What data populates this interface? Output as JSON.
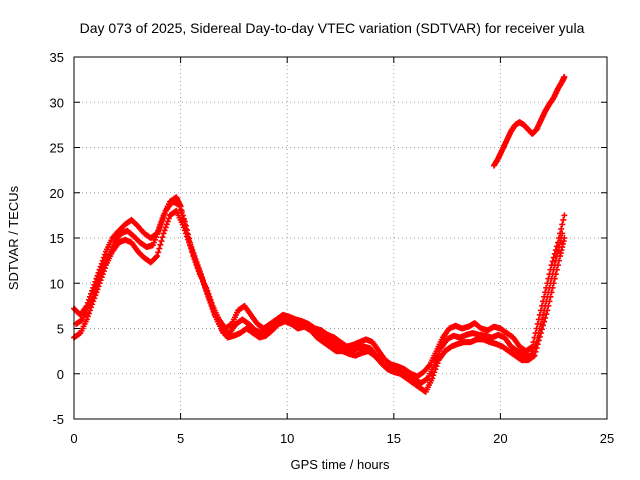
{
  "chart_data": {
    "type": "scatter",
    "title": "Day 073 of 2025, Sidereal Day-to-day VTEC variation (SDTVAR) for receiver yula",
    "xlabel": "GPS time / hours",
    "ylabel": "SDTVAR / TECUs",
    "xlim": [
      0,
      25
    ],
    "ylim": [
      -5,
      35
    ],
    "xticks": [
      0,
      5,
      10,
      15,
      20,
      25
    ],
    "yticks": [
      -5,
      0,
      5,
      10,
      15,
      20,
      25,
      30,
      35
    ],
    "grid": true,
    "legend": "none",
    "marker": "plus",
    "color": "#ff0000",
    "series": [
      {
        "name": "track-a",
        "points": [
          [
            0.0,
            7.2
          ],
          [
            0.3,
            6.5
          ],
          [
            0.6,
            7.5
          ],
          [
            0.9,
            9.5
          ],
          [
            1.2,
            11.5
          ],
          [
            1.5,
            13.5
          ],
          [
            1.8,
            15.0
          ],
          [
            2.1,
            15.8
          ],
          [
            2.4,
            16.5
          ],
          [
            2.7,
            17.0
          ],
          [
            3.0,
            16.3
          ],
          [
            3.3,
            15.5
          ],
          [
            3.6,
            15.0
          ],
          [
            3.9,
            15.5
          ],
          [
            4.2,
            17.5
          ],
          [
            4.5,
            19.0
          ],
          [
            4.8,
            19.5
          ],
          [
            5.0,
            18.5
          ],
          [
            5.3,
            15.5
          ],
          [
            5.6,
            13.0
          ],
          [
            5.9,
            11.0
          ],
          [
            6.2,
            9.5
          ],
          [
            6.5,
            7.5
          ],
          [
            6.8,
            6.0
          ],
          [
            7.1,
            5.0
          ],
          [
            7.4,
            5.5
          ],
          [
            7.7,
            7.0
          ],
          [
            8.0,
            7.5
          ],
          [
            8.3,
            6.5
          ],
          [
            8.6,
            5.5
          ],
          [
            8.9,
            5.0
          ],
          [
            9.2,
            5.5
          ],
          [
            9.5,
            6.0
          ],
          [
            9.8,
            6.5
          ],
          [
            10.1,
            6.3
          ],
          [
            10.4,
            6.0
          ],
          [
            10.7,
            5.8
          ],
          [
            11.0,
            5.5
          ],
          [
            11.3,
            5.0
          ],
          [
            11.6,
            4.8
          ],
          [
            11.9,
            4.3
          ],
          [
            12.2,
            4.0
          ],
          [
            12.5,
            3.5
          ],
          [
            12.8,
            3.0
          ],
          [
            13.1,
            3.2
          ],
          [
            13.4,
            3.5
          ],
          [
            13.7,
            3.8
          ],
          [
            14.0,
            3.5
          ],
          [
            14.3,
            2.5
          ],
          [
            14.6,
            1.5
          ],
          [
            14.9,
            1.0
          ],
          [
            15.2,
            0.8
          ],
          [
            15.5,
            0.5
          ],
          [
            15.8,
            0.0
          ],
          [
            16.1,
            -0.3
          ],
          [
            16.4,
            0.2
          ],
          [
            16.7,
            1.0
          ],
          [
            17.0,
            2.5
          ],
          [
            17.3,
            4.0
          ],
          [
            17.6,
            5.0
          ],
          [
            17.9,
            5.3
          ],
          [
            18.2,
            5.0
          ],
          [
            18.5,
            5.2
          ],
          [
            18.8,
            5.6
          ],
          [
            19.1,
            5.0
          ],
          [
            19.4,
            4.8
          ],
          [
            19.7,
            5.2
          ],
          [
            20.0,
            5.0
          ],
          [
            20.3,
            4.5
          ],
          [
            20.6,
            4.0
          ],
          [
            20.9,
            3.0
          ],
          [
            21.2,
            2.5
          ],
          [
            21.5,
            3.0
          ],
          [
            21.8,
            6.0
          ],
          [
            22.1,
            9.0
          ],
          [
            22.4,
            12.0
          ],
          [
            22.7,
            14.5
          ],
          [
            23.0,
            17.5
          ]
        ]
      },
      {
        "name": "track-b",
        "points": [
          [
            0.0,
            4.0
          ],
          [
            0.3,
            4.5
          ],
          [
            0.6,
            6.0
          ],
          [
            0.9,
            8.0
          ],
          [
            1.2,
            10.0
          ],
          [
            1.5,
            12.0
          ],
          [
            1.8,
            13.5
          ],
          [
            2.1,
            14.5
          ],
          [
            2.4,
            14.8
          ],
          [
            2.7,
            14.5
          ],
          [
            3.0,
            13.5
          ],
          [
            3.3,
            12.8
          ],
          [
            3.6,
            12.3
          ],
          [
            3.9,
            13.0
          ],
          [
            4.2,
            15.5
          ],
          [
            4.5,
            17.5
          ],
          [
            4.8,
            18.0
          ],
          [
            5.1,
            16.5
          ],
          [
            5.4,
            14.5
          ],
          [
            5.7,
            12.5
          ],
          [
            6.0,
            10.5
          ],
          [
            6.3,
            8.5
          ],
          [
            6.6,
            6.5
          ],
          [
            6.9,
            5.0
          ],
          [
            7.2,
            4.0
          ],
          [
            7.5,
            4.2
          ],
          [
            7.8,
            4.5
          ],
          [
            8.1,
            5.0
          ],
          [
            8.4,
            4.5
          ],
          [
            8.7,
            4.0
          ],
          [
            9.0,
            4.2
          ],
          [
            9.3,
            4.8
          ],
          [
            9.6,
            5.5
          ],
          [
            9.9,
            5.8
          ],
          [
            10.2,
            5.5
          ],
          [
            10.5,
            5.0
          ],
          [
            10.8,
            5.2
          ],
          [
            11.1,
            4.8
          ],
          [
            11.4,
            4.0
          ],
          [
            11.7,
            3.5
          ],
          [
            12.0,
            3.0
          ],
          [
            12.3,
            2.5
          ],
          [
            12.6,
            2.5
          ],
          [
            12.9,
            2.2
          ],
          [
            13.2,
            2.0
          ],
          [
            13.5,
            2.3
          ],
          [
            13.8,
            2.5
          ],
          [
            14.1,
            2.0
          ],
          [
            14.4,
            1.2
          ],
          [
            14.7,
            0.5
          ],
          [
            15.0,
            0.2
          ],
          [
            15.3,
            0.0
          ],
          [
            15.6,
            -0.5
          ],
          [
            15.9,
            -1.0
          ],
          [
            16.2,
            -1.5
          ],
          [
            16.5,
            -2.0
          ],
          [
            16.8,
            -0.5
          ],
          [
            17.1,
            1.5
          ],
          [
            17.4,
            2.5
          ],
          [
            17.7,
            3.0
          ],
          [
            18.0,
            3.3
          ],
          [
            18.3,
            3.5
          ],
          [
            18.6,
            3.5
          ],
          [
            18.9,
            3.8
          ],
          [
            19.2,
            3.8
          ],
          [
            19.5,
            3.5
          ],
          [
            19.8,
            3.3
          ],
          [
            20.1,
            3.0
          ],
          [
            20.4,
            2.5
          ],
          [
            20.7,
            2.0
          ],
          [
            21.0,
            1.5
          ],
          [
            21.3,
            1.5
          ],
          [
            21.6,
            2.0
          ],
          [
            21.9,
            4.5
          ],
          [
            22.2,
            7.0
          ],
          [
            22.5,
            10.0
          ],
          [
            22.8,
            13.0
          ],
          [
            23.0,
            15.0
          ]
        ]
      },
      {
        "name": "track-c",
        "points": [
          [
            0.1,
            5.5
          ],
          [
            0.4,
            6.0
          ],
          [
            0.7,
            7.5
          ],
          [
            1.0,
            9.0
          ],
          [
            1.3,
            11.0
          ],
          [
            1.6,
            13.0
          ],
          [
            1.9,
            14.5
          ],
          [
            2.2,
            15.5
          ],
          [
            2.5,
            15.8
          ],
          [
            2.8,
            15.2
          ],
          [
            3.1,
            14.5
          ],
          [
            3.4,
            14.0
          ],
          [
            3.7,
            14.2
          ],
          [
            4.0,
            16.0
          ],
          [
            4.3,
            18.0
          ],
          [
            4.6,
            19.0
          ],
          [
            4.9,
            18.8
          ],
          [
            5.2,
            16.8
          ],
          [
            5.5,
            14.0
          ],
          [
            5.8,
            12.0
          ],
          [
            6.1,
            10.0
          ],
          [
            6.4,
            8.0
          ],
          [
            6.7,
            6.0
          ],
          [
            7.0,
            4.5
          ],
          [
            7.3,
            4.5
          ],
          [
            7.6,
            5.5
          ],
          [
            7.9,
            6.0
          ],
          [
            8.2,
            5.5
          ],
          [
            8.5,
            4.8
          ],
          [
            8.8,
            4.5
          ],
          [
            9.1,
            4.8
          ],
          [
            9.4,
            5.2
          ],
          [
            9.7,
            5.8
          ],
          [
            10.0,
            6.0
          ],
          [
            10.3,
            5.8
          ],
          [
            10.6,
            5.5
          ],
          [
            10.9,
            5.5
          ],
          [
            11.2,
            5.0
          ],
          [
            11.5,
            4.3
          ],
          [
            11.8,
            3.8
          ],
          [
            12.1,
            3.5
          ],
          [
            12.4,
            3.0
          ],
          [
            12.7,
            2.5
          ],
          [
            13.0,
            2.5
          ],
          [
            13.3,
            2.8
          ],
          [
            13.6,
            3.0
          ],
          [
            13.9,
            2.8
          ],
          [
            14.2,
            2.0
          ],
          [
            14.5,
            1.0
          ],
          [
            14.8,
            0.5
          ],
          [
            15.1,
            0.5
          ],
          [
            15.4,
            0.2
          ],
          [
            15.7,
            -0.2
          ],
          [
            16.0,
            -0.8
          ],
          [
            16.3,
            -1.0
          ],
          [
            16.6,
            -0.5
          ],
          [
            16.9,
            1.0
          ],
          [
            17.2,
            2.8
          ],
          [
            17.5,
            3.8
          ],
          [
            17.8,
            4.2
          ],
          [
            18.1,
            4.0
          ],
          [
            18.4,
            4.3
          ],
          [
            18.7,
            4.5
          ],
          [
            19.0,
            4.3
          ],
          [
            19.3,
            4.2
          ],
          [
            19.6,
            4.0
          ],
          [
            19.9,
            4.3
          ],
          [
            20.2,
            4.0
          ],
          [
            20.5,
            3.0
          ],
          [
            20.8,
            2.5
          ],
          [
            21.1,
            2.0
          ],
          [
            21.4,
            2.0
          ],
          [
            21.7,
            3.5
          ],
          [
            22.0,
            6.5
          ],
          [
            22.3,
            9.5
          ],
          [
            22.6,
            12.5
          ],
          [
            22.9,
            15.5
          ]
        ]
      },
      {
        "name": "late-arc",
        "points": [
          [
            19.7,
            23.0
          ],
          [
            19.9,
            23.8
          ],
          [
            20.1,
            24.8
          ],
          [
            20.3,
            25.8
          ],
          [
            20.5,
            26.8
          ],
          [
            20.7,
            27.5
          ],
          [
            20.9,
            27.8
          ],
          [
            21.1,
            27.5
          ],
          [
            21.3,
            27.0
          ],
          [
            21.5,
            26.5
          ],
          [
            21.7,
            27.0
          ],
          [
            21.9,
            28.0
          ],
          [
            22.1,
            29.0
          ],
          [
            22.3,
            29.8
          ],
          [
            22.5,
            30.5
          ],
          [
            22.7,
            31.5
          ],
          [
            22.9,
            32.3
          ],
          [
            23.0,
            32.8
          ]
        ]
      }
    ]
  }
}
